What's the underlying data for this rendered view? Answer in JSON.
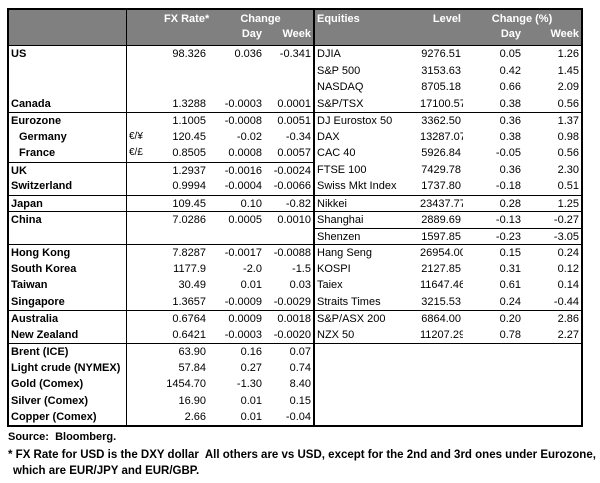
{
  "colors": {
    "header_bg": "#808080",
    "header_text": "#ffffff",
    "border": "#000000",
    "body_bg": "#ffffff",
    "body_text": "#000000"
  },
  "headers": {
    "left": {
      "fx_rate": "FX Rate*",
      "change": "Change",
      "day": "Day",
      "week": "Week"
    },
    "right": {
      "equities": "Equities",
      "level": "Level",
      "change_pct": "Change (%)",
      "day": "Day",
      "week": "Week"
    }
  },
  "rows": [
    {
      "fx": {
        "name": "US",
        "pair": "",
        "rate": "98.326",
        "day": "0.036",
        "week": "-0.341"
      },
      "eq": {
        "name": "DJIA",
        "level": "9276.51",
        "day": "0.05",
        "week": "1.26"
      }
    },
    {
      "fx": null,
      "eq": {
        "name": "S&P 500",
        "level": "3153.63",
        "day": "0.42",
        "week": "1.45"
      }
    },
    {
      "fx": null,
      "eq": {
        "name": "NASDAQ",
        "level": "8705.18",
        "day": "0.66",
        "week": "2.09"
      }
    },
    {
      "fx": {
        "name": "Canada",
        "pair": "",
        "rate": "1.3288",
        "day": "-0.0003",
        "week": "0.0001"
      },
      "eq": {
        "name": "S&P/TSX",
        "level": "17100.57",
        "day": "0.38",
        "week": "0.56"
      }
    },
    {
      "fx": {
        "name": "Eurozone",
        "pair": "",
        "rate": "1.1005",
        "day": "-0.0008",
        "week": "0.0051"
      },
      "eq": {
        "name": "DJ Eurostox 50",
        "level": "3362.50",
        "day": "0.36",
        "week": "1.37"
      },
      "fx_top": true,
      "eq_top": true
    },
    {
      "fx": {
        "name": "Germany",
        "pair": "€/¥",
        "rate": "120.45",
        "day": "-0.02",
        "week": "-0.34",
        "indent": true
      },
      "eq": {
        "name": "DAX",
        "level": "13287.07",
        "day": "0.38",
        "week": "0.98"
      }
    },
    {
      "fx": {
        "name": "France",
        "pair": "€/£",
        "rate": "0.8505",
        "day": "0.0008",
        "week": "0.0057",
        "indent": true
      },
      "eq": {
        "name": "CAC 40",
        "level": "5926.84",
        "day": "-0.05",
        "week": "0.56"
      }
    },
    {
      "fx": {
        "name": "UK",
        "pair": "",
        "rate": "1.2937",
        "day": "-0.0016",
        "week": "-0.0024"
      },
      "eq": {
        "name": "FTSE 100",
        "level": "7429.78",
        "day": "0.36",
        "week": "2.30"
      },
      "fx_top": true
    },
    {
      "fx": {
        "name": "Switzerland",
        "pair": "",
        "rate": "0.9994",
        "day": "-0.0004",
        "week": "-0.0066"
      },
      "eq": {
        "name": "Swiss Mkt Index",
        "level": "1737.80",
        "day": "-0.18",
        "week": "0.51"
      }
    },
    {
      "fx": {
        "name": "Japan",
        "pair": "",
        "rate": "109.45",
        "day": "0.10",
        "week": "-0.82"
      },
      "eq": {
        "name": "Nikkei",
        "level": "23437.77",
        "day": "0.28",
        "week": "1.25"
      },
      "fx_top": true,
      "eq_top": true
    },
    {
      "fx": {
        "name": "China",
        "pair": "",
        "rate": "7.0286",
        "day": "0.0005",
        "week": "0.0010"
      },
      "eq": {
        "name": "Shanghai",
        "level": "2889.69",
        "day": "-0.13",
        "week": "-0.27"
      },
      "fx_top": true,
      "eq_top": true
    },
    {
      "fx": null,
      "eq": {
        "name": "Shenzen",
        "level": "1597.85",
        "day": "-0.23",
        "week": "-3.05"
      },
      "eq_top": true
    },
    {
      "fx": {
        "name": "Hong Kong",
        "pair": "",
        "rate": "7.8287",
        "day": "-0.0017",
        "week": "-0.0088"
      },
      "eq": {
        "name": "Hang Seng",
        "level": "26954.00",
        "day": "0.15",
        "week": "0.24"
      },
      "fx_top": true,
      "eq_top": true
    },
    {
      "fx": {
        "name": "South Korea",
        "pair": "",
        "rate": "1177.9",
        "day": "-2.0",
        "week": "-1.5"
      },
      "eq": {
        "name": "KOSPI",
        "level": "2127.85",
        "day": "0.31",
        "week": "0.12"
      }
    },
    {
      "fx": {
        "name": "Taiwan",
        "pair": "",
        "rate": "30.49",
        "day": "0.01",
        "week": "0.03"
      },
      "eq": {
        "name": "Taiex",
        "level": "11647.46",
        "day": "0.61",
        "week": "0.14"
      }
    },
    {
      "fx": {
        "name": "Singapore",
        "pair": "",
        "rate": "1.3657",
        "day": "-0.0009",
        "week": "-0.0029"
      },
      "eq": {
        "name": "Straits Times",
        "level": "3215.53",
        "day": "0.24",
        "week": "-0.44"
      }
    },
    {
      "fx": {
        "name": "Australia",
        "pair": "",
        "rate": "0.6764",
        "day": "0.0009",
        "week": "0.0018"
      },
      "eq": {
        "name": "S&P/ASX  200",
        "level": "6864.00",
        "day": "0.20",
        "week": "2.86"
      },
      "fx_top": true,
      "eq_top": true
    },
    {
      "fx": {
        "name": "New Zealand",
        "pair": "",
        "rate": "0.6421",
        "day": "-0.0003",
        "week": "-0.0020"
      },
      "eq": {
        "name": "NZX 50",
        "level": "11207.29",
        "day": "0.78",
        "week": "2.27"
      }
    },
    {
      "fx": {
        "name": "Brent (ICE)",
        "pair": "",
        "rate": "63.90",
        "day": "0.16",
        "week": "0.07"
      },
      "eq": null,
      "fx_top": true,
      "eq_top": true
    },
    {
      "fx": {
        "name": "Light crude (NYMEX)",
        "pair": "",
        "rate": "57.84",
        "day": "0.27",
        "week": "0.74"
      },
      "eq": null
    },
    {
      "fx": {
        "name": "Gold (Comex)",
        "pair": "",
        "rate": "1454.70",
        "day": "-1.30",
        "week": "8.40"
      },
      "eq": null
    },
    {
      "fx": {
        "name": "Silver (Comex)",
        "pair": "",
        "rate": "16.90",
        "day": "0.01",
        "week": "0.15"
      },
      "eq": null
    },
    {
      "fx": {
        "name": "Copper (Comex)",
        "pair": "",
        "rate": "2.66",
        "day": "0.01",
        "week": "-0.04"
      },
      "eq": null
    }
  ],
  "footer": {
    "source": "Source:  Bloomberg.",
    "note_line1": "* FX Rate for USD is the DXY dollar  All others are vs USD, except for the 2nd and 3rd ones under Eurozone,",
    "note_line2": "which are EUR/JPY and EUR/GBP."
  }
}
